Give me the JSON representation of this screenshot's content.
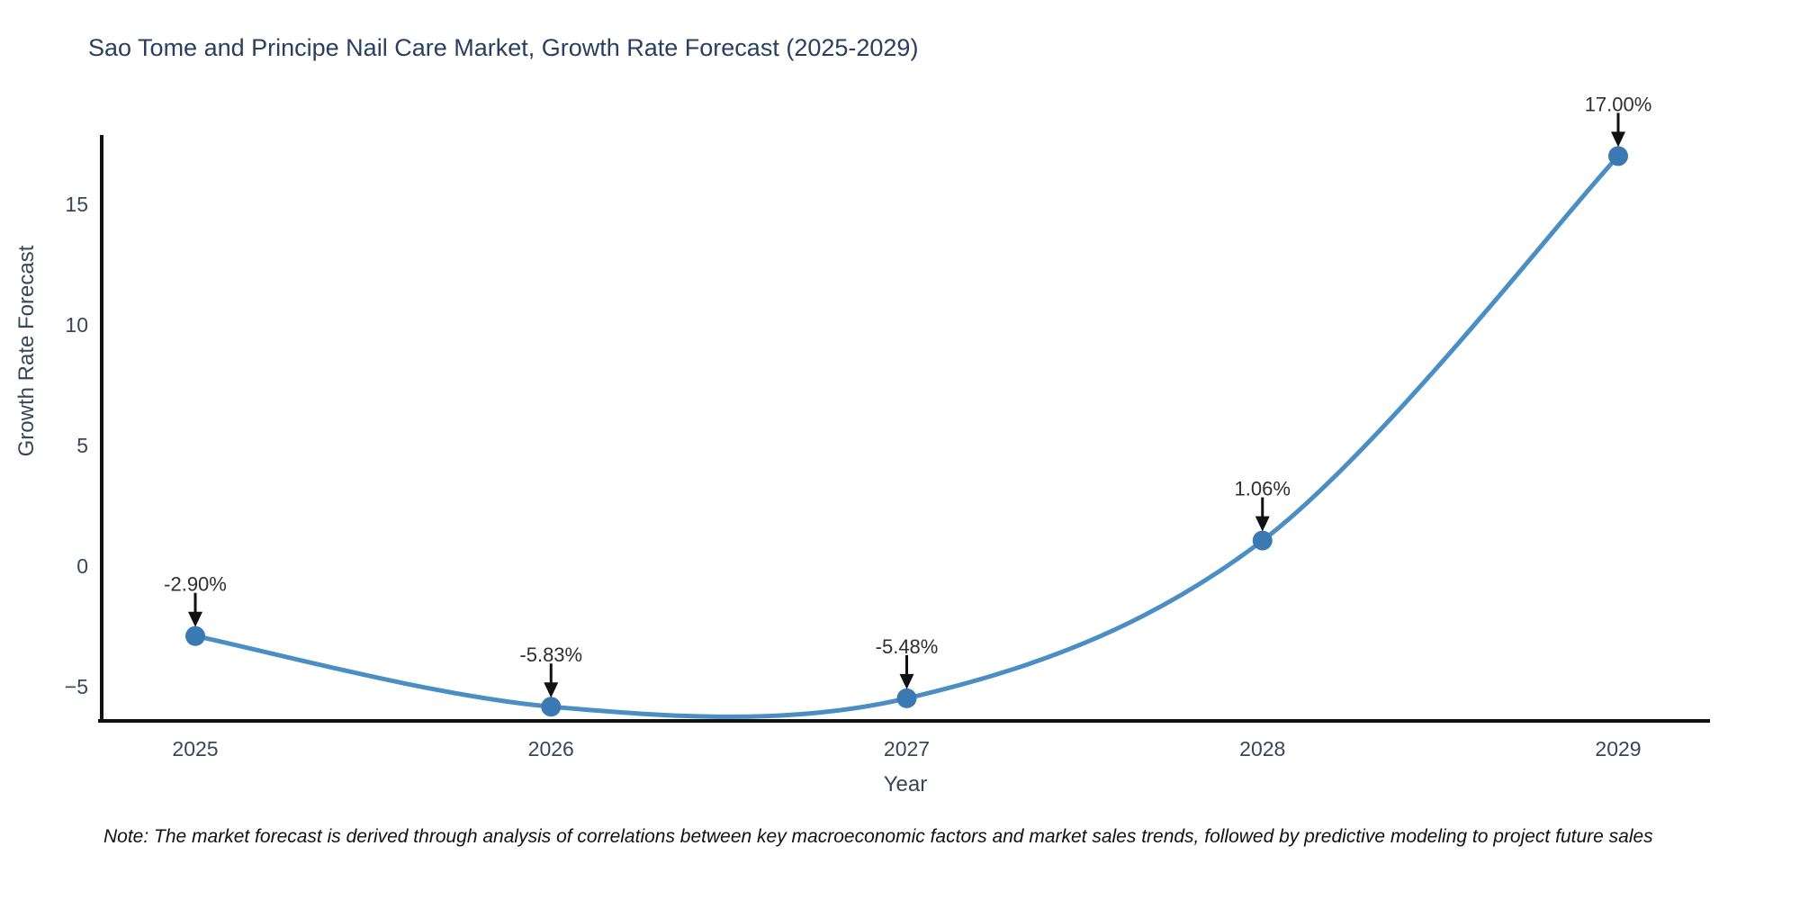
{
  "title": "Sao Tome and Principe Nail Care Market, Growth Rate Forecast (2025-2029)",
  "note": "Note: The market forecast is derived through analysis of correlations between key macroeconomic factors and market sales trends, followed by predictive modeling to project future sales",
  "chart_data": {
    "type": "line",
    "title": "Sao Tome and Principe Nail Care Market, Growth Rate Forecast (2025-2029)",
    "xlabel": "Year",
    "ylabel": "Growth Rate Forecast",
    "x": [
      2025,
      2026,
      2027,
      2028,
      2029
    ],
    "series": [
      {
        "name": "Growth Rate Forecast",
        "values": [
          -2.9,
          -5.83,
          -5.48,
          1.06,
          17.0
        ]
      }
    ],
    "point_labels": [
      "-2.90%",
      "-5.83%",
      "-5.48%",
      "1.06%",
      "17.00%"
    ],
    "yticks": [
      -5,
      0,
      5,
      10,
      15
    ],
    "ylim": [
      -6.4,
      17.9
    ],
    "xlim": [
      2024.73,
      2029.26
    ],
    "grid": false,
    "legend": false,
    "marker_shape": "circle",
    "annotation_arrow": "down-arrow",
    "colors": {
      "line": "#4a8ec4",
      "marker": "#3b79b3",
      "axis": "#111111",
      "tick_label": "#3a4654",
      "title": "#2a3f5f",
      "annotation": "#2f2f2f",
      "arrow": "#111111",
      "background": "#ffffff"
    }
  }
}
